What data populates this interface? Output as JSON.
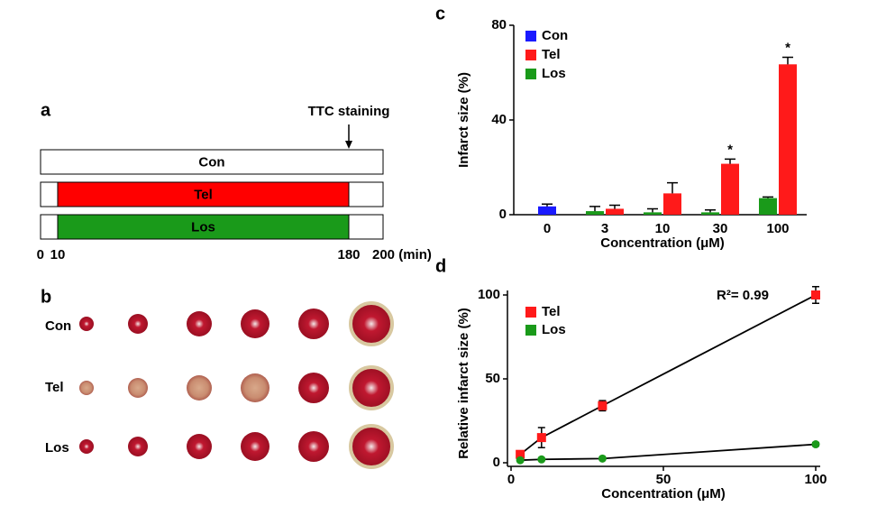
{
  "chart_data": [
    {
      "type": "timeline",
      "label": "a",
      "annotation": "TTC staining",
      "annotation_at": 180,
      "xlim": [
        0,
        200
      ],
      "xticks": [
        0,
        10,
        180,
        {
          "value": 200,
          "label": "200 (min)"
        }
      ],
      "series": [
        {
          "name": "Con",
          "color": "#ffffff",
          "start": 0,
          "end": 200
        },
        {
          "name": "Tel",
          "color": "#ff0000",
          "start": 10,
          "end": 180
        },
        {
          "name": "Los",
          "color": "#1a9a1a",
          "start": 10,
          "end": 180
        }
      ]
    },
    {
      "type": "bar",
      "label": "c",
      "ylabel": "Infarct size (%)",
      "xlabel": "Concentration (μM)",
      "categories": [
        "0",
        "3",
        "10",
        "30",
        "100"
      ],
      "ylim": [
        0,
        80
      ],
      "yticks": [
        0,
        40,
        80
      ],
      "series": [
        {
          "name": "Con",
          "color": "#1a1aff",
          "values": [
            3.5,
            null,
            null,
            null,
            null
          ],
          "errors": [
            1,
            null,
            null,
            null,
            null
          ]
        },
        {
          "name": "Tel",
          "color": "#ff1a1a",
          "values": [
            null,
            2.5,
            9,
            21.5,
            63.5
          ],
          "errors": [
            null,
            1.5,
            4.5,
            2,
            3
          ]
        },
        {
          "name": "Los",
          "color": "#1a9a1a",
          "values": [
            null,
            1.5,
            1,
            1,
            7
          ],
          "errors": [
            null,
            2,
            1.5,
            1,
            0.5
          ]
        }
      ],
      "annotations": [
        {
          "text": "*",
          "category": "30"
        },
        {
          "text": "*",
          "category": "100"
        }
      ]
    },
    {
      "type": "scatter",
      "label": "d",
      "ylabel": "Relative infarct  size  (%)",
      "xlabel": "Concentration (μM)",
      "annotation": "R²= 0.99",
      "xlim": [
        0,
        100
      ],
      "xticks": [
        0,
        50,
        100
      ],
      "ylim": [
        0,
        100
      ],
      "yticks": [
        0,
        50,
        100
      ],
      "series": [
        {
          "name": "Tel",
          "color": "#ff1a1a",
          "marker": "square",
          "x": [
            3,
            10,
            30,
            100
          ],
          "values": [
            5,
            15,
            34,
            100
          ],
          "errors": [
            1,
            6,
            3,
            5
          ]
        },
        {
          "name": "Los",
          "color": "#1a9a1a",
          "marker": "circle",
          "x": [
            3,
            10,
            30,
            100
          ],
          "values": [
            1.5,
            2,
            2.5,
            11
          ],
          "errors": [
            0.5,
            0.5,
            0.5,
            1
          ]
        }
      ]
    }
  ],
  "photo_panel": {
    "label": "b",
    "rows": [
      "Con",
      "Tel",
      "Los"
    ]
  }
}
